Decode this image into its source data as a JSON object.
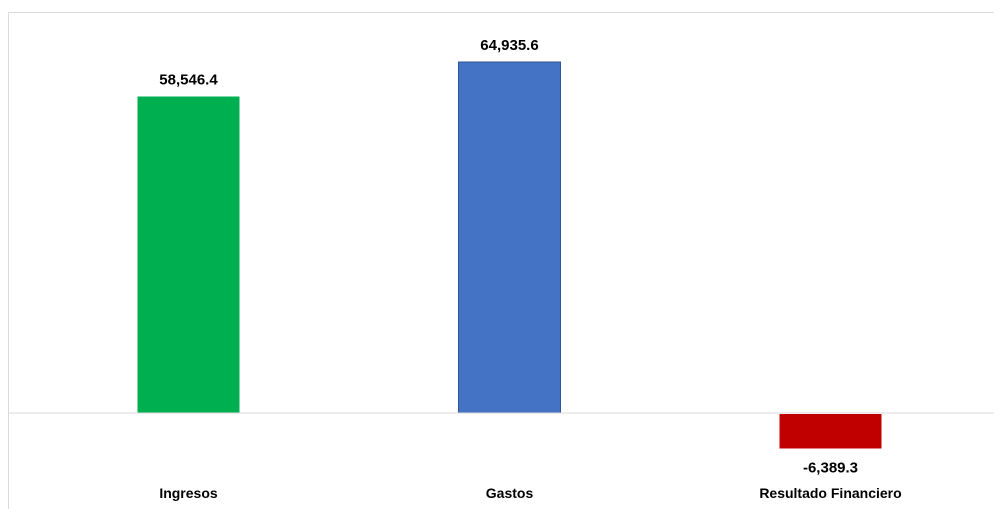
{
  "chart_data": {
    "type": "bar",
    "categories": [
      "Ingresos",
      "Gastos",
      "Resultado Financiero"
    ],
    "values": [
      58546.4,
      64935.6,
      -6389.3
    ],
    "value_labels": [
      "58,546.4",
      "64,935.6",
      "-6,389.3"
    ],
    "colors": [
      "#00b050",
      "#4472c4",
      "#c00000"
    ],
    "title": "",
    "xlabel": "",
    "ylabel": "",
    "grid": false,
    "legend": "none"
  }
}
